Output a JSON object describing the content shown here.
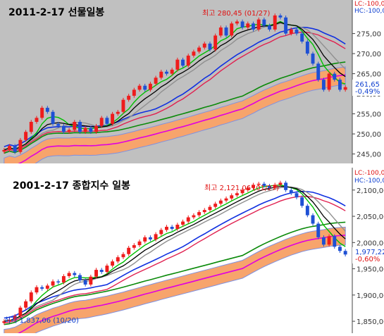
{
  "chart_data": [
    {
      "type": "candlestick",
      "title": "2011-2-17 선물일봉",
      "y_ticks": [
        "275,00",
        "270,00",
        "265,00",
        "260,00",
        "255,00",
        "250,00",
        "245,00"
      ],
      "ylim": [
        243,
        283
      ],
      "corner_labels": [
        "LC:-100,0",
        "HC:-100,0"
      ],
      "high_annotation": "최고 280,45 (01/27)",
      "last_value": "261,65",
      "last_change": "-0,49%",
      "closes": [
        246.0,
        247.0,
        245.5,
        248.5,
        250.5,
        253.0,
        254.0,
        256.5,
        255.5,
        252.5,
        252.0,
        250.5,
        251.0,
        253.0,
        250.5,
        251.5,
        250.5,
        252.0,
        254.0,
        252.5,
        255.0,
        255.5,
        258.5,
        259.5,
        261.0,
        262.0,
        261.0,
        262.5,
        264.0,
        265.5,
        265.0,
        266.0,
        268.5,
        267.0,
        269.5,
        270.5,
        271.5,
        272.5,
        271.0,
        274.5,
        276.5,
        274.5,
        277.5,
        278.0,
        276.5,
        277.5,
        276.0,
        278.5,
        277.0,
        276.0,
        279.5,
        279.0,
        275.0,
        276.0,
        275.0,
        273.0,
        270.0,
        267.5,
        263.5,
        261.0,
        265.0,
        263.5,
        261.0,
        261.65
      ],
      "colors": {
        "up": "#ee1c1c",
        "down": "#1e50d4",
        "ichimoku_cloud": "#f7a46c",
        "background": "#c0c0c0"
      }
    },
    {
      "type": "candlestick",
      "title": "2001-2-17 종합지수 일봉",
      "y_ticks": [
        "2,100,00",
        "2,050,00",
        "2,000,00",
        "1,950,00",
        "1,900,00",
        "1,850,00"
      ],
      "ylim": [
        1830,
        2140
      ],
      "corner_labels": [
        "LC:-100,0",
        "HC:-100,0"
      ],
      "high_annotation": "최고 2,121,06 (01/27)",
      "low_annotation": "최저 1,837,06 (10/20)",
      "last_value": "1,977,22",
      "last_change": "-0,60%",
      "closes": [
        1850,
        1853,
        1860,
        1876,
        1888,
        1905,
        1915,
        1912,
        1918,
        1926,
        1924,
        1936,
        1942,
        1938,
        1928,
        1920,
        1935,
        1948,
        1944,
        1956,
        1964,
        1972,
        1978,
        1990,
        1995,
        2002,
        2010,
        2006,
        2016,
        2024,
        2030,
        2026,
        2034,
        2040,
        2048,
        2052,
        2058,
        2062,
        2068,
        2074,
        2080,
        2084,
        2090,
        2094,
        2100,
        2104,
        2110,
        2112,
        2108,
        2104,
        2110,
        2114,
        2100,
        2094,
        2086,
        2070,
        2052,
        2036,
        2010,
        1996,
        2012,
        1992,
        1984,
        1977.22
      ],
      "colors": {
        "up": "#ee1c1c",
        "down": "#1e50d4",
        "ichimoku_cloud": "#f7a46c",
        "background": "#ffffff"
      }
    }
  ]
}
